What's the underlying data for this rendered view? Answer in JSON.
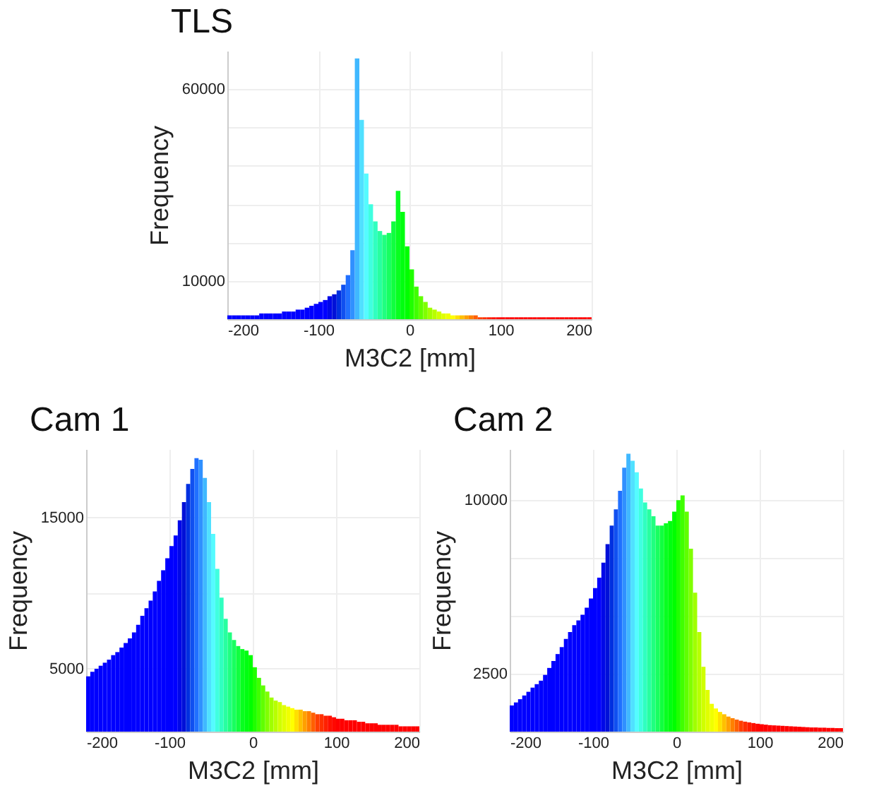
{
  "chart_data": [
    {
      "type": "histogram",
      "title": "TLS",
      "xlabel": "M3C2 [mm]",
      "ylabel": "Frequency",
      "grid": true,
      "xlim": [
        -200,
        200
      ],
      "xticks": [
        -200,
        -100,
        0,
        100,
        200
      ],
      "ylim": [
        0,
        70000
      ],
      "yticks": [
        10000,
        {
          "value": 20000,
          "label": null
        },
        {
          "value": 30000,
          "label": null
        },
        {
          "value": 40000,
          "label": null
        },
        {
          "value": 50000,
          "label": null
        },
        60000
      ],
      "bins": [
        -200,
        -195,
        -190,
        -185,
        -180,
        -175,
        -170,
        -165,
        -160,
        -155,
        -150,
        -145,
        -140,
        -135,
        -130,
        -125,
        -120,
        -115,
        -110,
        -105,
        -100,
        -95,
        -90,
        -85,
        -80,
        -75,
        -70,
        -65,
        -60,
        -55,
        -50,
        -45,
        -40,
        -35,
        -30,
        -25,
        -20,
        -15,
        -10,
        -5,
        0,
        5,
        10,
        15,
        20,
        25,
        30,
        35,
        40,
        45,
        50,
        55,
        60,
        65,
        70,
        75,
        80,
        85,
        90,
        95,
        100,
        105,
        110,
        115,
        120,
        125,
        130,
        135,
        140,
        145,
        150,
        155,
        160,
        165,
        170,
        175,
        180,
        185,
        190,
        195,
        200
      ],
      "values": [
        1000,
        1000,
        1000,
        1000,
        1000,
        1000,
        1000,
        1500,
        1500,
        1500,
        1500,
        1500,
        2000,
        2000,
        2000,
        2500,
        2500,
        3000,
        3500,
        4000,
        4500,
        5000,
        6000,
        6500,
        7500,
        9000,
        11500,
        18000,
        68000,
        52000,
        38000,
        30000,
        25500,
        23000,
        22000,
        22500,
        25500,
        33500,
        28000,
        19000,
        13000,
        8500,
        6000,
        4500,
        3000,
        2500,
        2000,
        1500,
        1500,
        1000,
        1000,
        1000,
        1000,
        1000,
        1000,
        500,
        500,
        500,
        500,
        500,
        500,
        500,
        500,
        500,
        500,
        500,
        500,
        500,
        500,
        500,
        500,
        500,
        500,
        500,
        500,
        500,
        500,
        500,
        500,
        500
      ],
      "colors": [
        "#0000ff",
        "#0000ff",
        "#0000ff",
        "#0000ff",
        "#0000ff",
        "#0000ff",
        "#0000ff",
        "#0000ff",
        "#0000ff",
        "#0000ff",
        "#0000ff",
        "#0000ff",
        "#0000ff",
        "#0000ff",
        "#0000ff",
        "#0000ff",
        "#0000ff",
        "#0000ff",
        "#0000ff",
        "#0000ff",
        "#0000ff",
        "#0000ff",
        "#0008e8",
        "#0010d8",
        "#0030e0",
        "#1050f0",
        "#2070ff",
        "#3090ff",
        "#40b8ff",
        "#50e0ff",
        "#55fbff",
        "#40ffe0",
        "#30ffc0",
        "#28ffa0",
        "#20ff80",
        "#18ff60",
        "#10ff40",
        "#08ff20",
        "#00ff10",
        "#00ff00",
        "#20ff00",
        "#40ff00",
        "#60ff00",
        "#80ff00",
        "#a0ff00",
        "#b8ff00",
        "#d0ff00",
        "#e0ff00",
        "#f0ff00",
        "#ffff00",
        "#ffe000",
        "#ffc000",
        "#ffa000",
        "#ff8000",
        "#ff6000",
        "#ff4000",
        "#ff3000",
        "#ff2000",
        "#ff1000",
        "#ff0800",
        "#ff0000",
        "#ff0000",
        "#ff0000",
        "#ff0000",
        "#ff0000",
        "#ff0000",
        "#ff0000",
        "#ff0000",
        "#ff0000",
        "#ff0000",
        "#ff0000",
        "#ff0000",
        "#ff0000",
        "#ff0000",
        "#ff0000",
        "#ff0000",
        "#ff0000",
        "#ff0000",
        "#ff0000",
        "#ff0000"
      ]
    },
    {
      "type": "histogram",
      "title": "Cam 1",
      "xlabel": "M3C2 [mm]",
      "ylabel": "Frequency",
      "grid": true,
      "xlim": [
        -200,
        200
      ],
      "xticks": [
        -200,
        -100,
        0,
        100,
        200
      ],
      "ylim": [
        850,
        19500
      ],
      "yticks": [
        5000,
        {
          "value": 10000,
          "label": null
        },
        15000
      ],
      "bins": [
        -200,
        -195,
        -190,
        -185,
        -180,
        -175,
        -170,
        -165,
        -160,
        -155,
        -150,
        -145,
        -140,
        -135,
        -130,
        -125,
        -120,
        -115,
        -110,
        -105,
        -100,
        -95,
        -90,
        -85,
        -80,
        -75,
        -70,
        -65,
        -60,
        -55,
        -50,
        -45,
        -40,
        -35,
        -30,
        -25,
        -20,
        -15,
        -10,
        -5,
        0,
        5,
        10,
        15,
        20,
        25,
        30,
        35,
        40,
        45,
        50,
        55,
        60,
        65,
        70,
        75,
        80,
        85,
        90,
        95,
        100,
        105,
        110,
        115,
        120,
        125,
        130,
        135,
        140,
        145,
        150,
        155,
        160,
        165,
        170,
        175,
        180,
        185,
        190,
        195,
        200
      ],
      "values": [
        4500,
        4800,
        5000,
        5200,
        5400,
        5600,
        5900,
        6100,
        6400,
        6700,
        7000,
        7400,
        7900,
        8500,
        9000,
        9500,
        10100,
        10800,
        11500,
        12300,
        13100,
        13800,
        14800,
        16000,
        17200,
        18200,
        18900,
        18800,
        17600,
        16000,
        13900,
        11600,
        9700,
        8300,
        7400,
        6900,
        6500,
        6300,
        6200,
        5900,
        5100,
        4400,
        3900,
        3500,
        3100,
        2900,
        2800,
        2600,
        2500,
        2400,
        2300,
        2300,
        2200,
        2200,
        2100,
        2000,
        2000,
        1900,
        1900,
        1800,
        1700,
        1700,
        1600,
        1600,
        1600,
        1500,
        1500,
        1400,
        1400,
        1400,
        1300,
        1300,
        1300,
        1300,
        1300,
        1200,
        1200,
        1200,
        1200,
        1200
      ],
      "colors": [
        "#0000ff",
        "#0000ff",
        "#0000ff",
        "#0000ff",
        "#0000ff",
        "#0000ff",
        "#0000ff",
        "#0000ff",
        "#0000ff",
        "#0000ff",
        "#0000ff",
        "#0000ff",
        "#0000ff",
        "#0000ff",
        "#0000ff",
        "#0000ff",
        "#0000ff",
        "#0000ff",
        "#0000ff",
        "#0000ff",
        "#0000ff",
        "#0000ff",
        "#0008e8",
        "#0010d8",
        "#0030e0",
        "#1050f0",
        "#2070ff",
        "#3090ff",
        "#40b8ff",
        "#50e0ff",
        "#55fbff",
        "#40ffe0",
        "#30ffc0",
        "#28ffa0",
        "#20ff80",
        "#18ff60",
        "#10ff40",
        "#08ff20",
        "#00ff10",
        "#00ff00",
        "#20ff00",
        "#40ff00",
        "#60ff00",
        "#80ff00",
        "#a0ff00",
        "#b8ff00",
        "#d0ff00",
        "#e0ff00",
        "#f0ff00",
        "#ffff00",
        "#ffe000",
        "#ffc000",
        "#ffa000",
        "#ff8000",
        "#ff6000",
        "#ff4000",
        "#ff3000",
        "#ff2000",
        "#ff1000",
        "#ff0800",
        "#ff0000",
        "#ff0000",
        "#ff0000",
        "#ff0000",
        "#ff0000",
        "#ff0000",
        "#ff0000",
        "#ff0000",
        "#ff0000",
        "#ff0000",
        "#ff0000",
        "#ff0000",
        "#ff0000",
        "#ff0000",
        "#ff0000",
        "#ff0000",
        "#ff0000",
        "#ff0000",
        "#ff0000",
        "#ff0000"
      ]
    },
    {
      "type": "histogram",
      "title": "Cam 2",
      "xlabel": "M3C2 [mm]",
      "ylabel": "Frequency",
      "grid": true,
      "xlim": [
        -200,
        200
      ],
      "xticks": [
        -200,
        -100,
        0,
        100,
        200
      ],
      "ylim": [
        0,
        12200
      ],
      "yticks": [
        2500,
        {
          "value": 5000,
          "label": null
        },
        {
          "value": 7500,
          "label": null
        },
        10000
      ],
      "bins": [
        -200,
        -195,
        -190,
        -185,
        -180,
        -175,
        -170,
        -165,
        -160,
        -155,
        -150,
        -145,
        -140,
        -135,
        -130,
        -125,
        -120,
        -115,
        -110,
        -105,
        -100,
        -95,
        -90,
        -85,
        -80,
        -75,
        -70,
        -65,
        -60,
        -55,
        -50,
        -45,
        -40,
        -35,
        -30,
        -25,
        -20,
        -15,
        -10,
        -5,
        0,
        5,
        10,
        15,
        20,
        25,
        30,
        35,
        40,
        45,
        50,
        55,
        60,
        65,
        70,
        75,
        80,
        85,
        90,
        95,
        100,
        105,
        110,
        115,
        120,
        125,
        130,
        135,
        140,
        145,
        150,
        155,
        160,
        165,
        170,
        175,
        180,
        185,
        190,
        195,
        200
      ],
      "values": [
        1130,
        1260,
        1400,
        1560,
        1720,
        1900,
        2050,
        2200,
        2450,
        2750,
        3050,
        3350,
        3650,
        4000,
        4300,
        4600,
        4800,
        5050,
        5350,
        5750,
        6200,
        6650,
        7300,
        8100,
        8900,
        9600,
        10400,
        11400,
        12000,
        11700,
        11200,
        10500,
        9900,
        9600,
        9300,
        8900,
        8900,
        9000,
        9100,
        9500,
        10000,
        10200,
        9500,
        7900,
        6000,
        4300,
        2800,
        1800,
        1200,
        1000,
        850,
        750,
        650,
        580,
        520,
        470,
        430,
        400,
        370,
        340,
        320,
        300,
        280,
        270,
        260,
        250,
        240,
        230,
        220,
        210,
        200,
        190,
        180,
        180,
        170,
        170,
        160,
        160,
        150,
        150
      ],
      "colors": [
        "#0000ff",
        "#0000ff",
        "#0000ff",
        "#0000ff",
        "#0000ff",
        "#0000ff",
        "#0000ff",
        "#0000ff",
        "#0000ff",
        "#0000ff",
        "#0000ff",
        "#0000ff",
        "#0000ff",
        "#0000ff",
        "#0000ff",
        "#0000ff",
        "#0000ff",
        "#0000ff",
        "#0000ff",
        "#0000ff",
        "#0000ff",
        "#0000ff",
        "#0008e8",
        "#0010d8",
        "#0030e0",
        "#1050f0",
        "#2070ff",
        "#3090ff",
        "#40b8ff",
        "#50e0ff",
        "#55fbff",
        "#40ffe0",
        "#30ffc0",
        "#28ffa0",
        "#20ff80",
        "#18ff60",
        "#10ff40",
        "#08ff20",
        "#00ff10",
        "#00ff00",
        "#20ff00",
        "#40ff00",
        "#60ff00",
        "#80ff00",
        "#a0ff00",
        "#b8ff00",
        "#d0ff00",
        "#e0ff00",
        "#f0ff00",
        "#ffff00",
        "#ffe000",
        "#ffc000",
        "#ffa000",
        "#ff8000",
        "#ff6000",
        "#ff4000",
        "#ff3000",
        "#ff2000",
        "#ff1000",
        "#ff0800",
        "#ff0000",
        "#ff0000",
        "#ff0000",
        "#ff0000",
        "#ff0000",
        "#ff0000",
        "#ff0000",
        "#ff0000",
        "#ff0000",
        "#ff0000",
        "#ff0000",
        "#ff0000",
        "#ff0000",
        "#ff0000",
        "#ff0000",
        "#ff0000",
        "#ff0000",
        "#ff0000",
        "#ff0000",
        "#ff0000"
      ]
    }
  ]
}
